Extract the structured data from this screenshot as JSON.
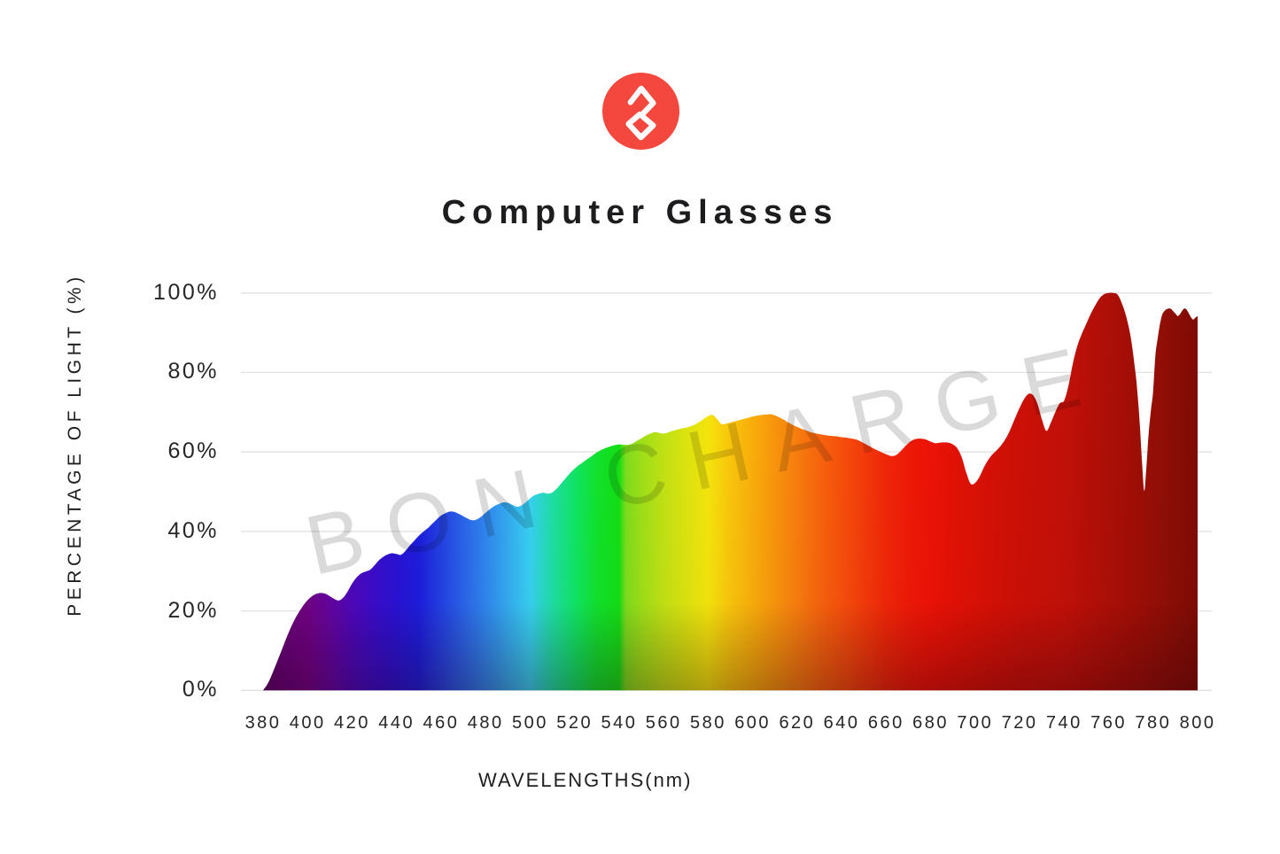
{
  "header": {
    "title": "Computer Glasses"
  },
  "brand": {
    "logo_color": "#f4473d",
    "logo_glyph_color": "#ffffff",
    "logo_icon": "bon-charge-8-mark"
  },
  "watermark": {
    "text": "BON CHARGE"
  },
  "chart_data": {
    "type": "area",
    "title": "Computer Glasses",
    "xlabel": "WAVELENGTHS(nm)",
    "ylabel": "PERCENTAGE OF LIGHT (%)",
    "xlim": [
      380,
      800
    ],
    "ylim": [
      0,
      100
    ],
    "grid": true,
    "gridline_color": "#e4e4e4",
    "legend_position": "none",
    "x_ticks": [
      {
        "value": 380,
        "label": "380"
      },
      {
        "value": 400,
        "label": "400"
      },
      {
        "value": 420,
        "label": "420"
      },
      {
        "value": 440,
        "label": "440"
      },
      {
        "value": 460,
        "label": "460"
      },
      {
        "value": 480,
        "label": "480"
      },
      {
        "value": 500,
        "label": "500"
      },
      {
        "value": 520,
        "label": "520"
      },
      {
        "value": 540,
        "label": "540"
      },
      {
        "value": 560,
        "label": "560"
      },
      {
        "value": 580,
        "label": "580"
      },
      {
        "value": 600,
        "label": "600"
      },
      {
        "value": 620,
        "label": "620"
      },
      {
        "value": 640,
        "label": "640"
      },
      {
        "value": 660,
        "label": "660"
      },
      {
        "value": 680,
        "label": "680"
      },
      {
        "value": 700,
        "label": "700"
      },
      {
        "value": 720,
        "label": "720"
      },
      {
        "value": 740,
        "label": "740"
      },
      {
        "value": 760,
        "label": "760"
      },
      {
        "value": 780,
        "label": "780"
      },
      {
        "value": 800,
        "label": "800"
      }
    ],
    "y_ticks": [
      {
        "value": 0,
        "label": "0%"
      },
      {
        "value": 20,
        "label": "20%"
      },
      {
        "value": 40,
        "label": "40%"
      },
      {
        "value": 60,
        "label": "60%"
      },
      {
        "value": 80,
        "label": "80%"
      },
      {
        "value": 100,
        "label": "100%"
      }
    ],
    "series": [
      {
        "name": "percentage of light transmitted",
        "points": [
          [
            380,
            0
          ],
          [
            382,
            1.6
          ],
          [
            384,
            4
          ],
          [
            386,
            6.8
          ],
          [
            388,
            9.6
          ],
          [
            390,
            12.5
          ],
          [
            392,
            15.2
          ],
          [
            394,
            17.6
          ],
          [
            396,
            19.6
          ],
          [
            398,
            21.3
          ],
          [
            400,
            22.7
          ],
          [
            402,
            23.7
          ],
          [
            404,
            24.3
          ],
          [
            406,
            24.5
          ],
          [
            408,
            24.3
          ],
          [
            410,
            23.7
          ],
          [
            412,
            23
          ],
          [
            414,
            22.6
          ],
          [
            416,
            23.3
          ],
          [
            418,
            24.9
          ],
          [
            420,
            26.9
          ],
          [
            422,
            28.4
          ],
          [
            424,
            29.4
          ],
          [
            426,
            29.9
          ],
          [
            428,
            30.3
          ],
          [
            430,
            31.4
          ],
          [
            432,
            32.7
          ],
          [
            434,
            33.6
          ],
          [
            436,
            34.2
          ],
          [
            438,
            34.5
          ],
          [
            440,
            34.3
          ],
          [
            442,
            34.1
          ],
          [
            444,
            35.1
          ],
          [
            446,
            36.5
          ],
          [
            448,
            37.7
          ],
          [
            450,
            38.9
          ],
          [
            452,
            39.9
          ],
          [
            454,
            40.8
          ],
          [
            456,
            41.9
          ],
          [
            458,
            43
          ],
          [
            460,
            44
          ],
          [
            462,
            44.6
          ],
          [
            464,
            45
          ],
          [
            466,
            44.9
          ],
          [
            468,
            44.4
          ],
          [
            470,
            43.8
          ],
          [
            472,
            43.2
          ],
          [
            474,
            42.8
          ],
          [
            476,
            43
          ],
          [
            478,
            43.7
          ],
          [
            480,
            44.7
          ],
          [
            482,
            45.6
          ],
          [
            484,
            46.4
          ],
          [
            486,
            46.9
          ],
          [
            488,
            47.3
          ],
          [
            490,
            47.2
          ],
          [
            492,
            46.7
          ],
          [
            494,
            46.2
          ],
          [
            496,
            46.5
          ],
          [
            498,
            47.3
          ],
          [
            500,
            48.3
          ],
          [
            502,
            49.1
          ],
          [
            504,
            49.5
          ],
          [
            506,
            49.7
          ],
          [
            508,
            49.5
          ],
          [
            510,
            49.8
          ],
          [
            512,
            50.8
          ],
          [
            514,
            52.1
          ],
          [
            516,
            53.4
          ],
          [
            518,
            54.7
          ],
          [
            520,
            55.8
          ],
          [
            522,
            56.7
          ],
          [
            524,
            57.5
          ],
          [
            526,
            58.3
          ],
          [
            528,
            59.1
          ],
          [
            530,
            59.9
          ],
          [
            532,
            60.5
          ],
          [
            534,
            61
          ],
          [
            536,
            61.4
          ],
          [
            538,
            61.7
          ],
          [
            540,
            61.9
          ],
          [
            542,
            61.8
          ],
          [
            544,
            61.8
          ],
          [
            546,
            62.1
          ],
          [
            548,
            62.8
          ],
          [
            550,
            63.4
          ],
          [
            552,
            64.1
          ],
          [
            554,
            64.6
          ],
          [
            556,
            65
          ],
          [
            558,
            64.8
          ],
          [
            560,
            64.6
          ],
          [
            562,
            64.9
          ],
          [
            564,
            65.3
          ],
          [
            566,
            65.6
          ],
          [
            568,
            65.9
          ],
          [
            570,
            66.1
          ],
          [
            572,
            66.4
          ],
          [
            574,
            66.9
          ],
          [
            576,
            67.5
          ],
          [
            578,
            68.3
          ],
          [
            580,
            69
          ],
          [
            582,
            69.3
          ],
          [
            584,
            68.3
          ],
          [
            586,
            67
          ],
          [
            588,
            67.1
          ],
          [
            590,
            67.4
          ],
          [
            592,
            67.7
          ],
          [
            594,
            68
          ],
          [
            596,
            68.3
          ],
          [
            598,
            68.6
          ],
          [
            600,
            68.9
          ],
          [
            602,
            69.1
          ],
          [
            604,
            69.3
          ],
          [
            606,
            69.4
          ],
          [
            608,
            69.5
          ],
          [
            610,
            69.2
          ],
          [
            612,
            68.7
          ],
          [
            614,
            68.1
          ],
          [
            616,
            67.4
          ],
          [
            618,
            66.8
          ],
          [
            620,
            66.3
          ],
          [
            622,
            65.8
          ],
          [
            624,
            65.4
          ],
          [
            626,
            65
          ],
          [
            628,
            64.7
          ],
          [
            630,
            64.5
          ],
          [
            632,
            64.3
          ],
          [
            634,
            64.1
          ],
          [
            636,
            64
          ],
          [
            638,
            63.9
          ],
          [
            640,
            63.7
          ],
          [
            642,
            63.6
          ],
          [
            644,
            63.4
          ],
          [
            646,
            63.2
          ],
          [
            648,
            62.8
          ],
          [
            650,
            62.2
          ],
          [
            652,
            61.6
          ],
          [
            654,
            61
          ],
          [
            656,
            60.4
          ],
          [
            658,
            59.9
          ],
          [
            660,
            59.4
          ],
          [
            662,
            59
          ],
          [
            664,
            59.1
          ],
          [
            666,
            59.9
          ],
          [
            668,
            61.1
          ],
          [
            670,
            62.2
          ],
          [
            672,
            63
          ],
          [
            674,
            63.3
          ],
          [
            676,
            63.3
          ],
          [
            678,
            63.1
          ],
          [
            680,
            62.6
          ],
          [
            682,
            62.2
          ],
          [
            684,
            62.3
          ],
          [
            686,
            62.4
          ],
          [
            688,
            62.3
          ],
          [
            690,
            61.9
          ],
          [
            692,
            60.9
          ],
          [
            694,
            58.6
          ],
          [
            696,
            54.8
          ],
          [
            698,
            52
          ],
          [
            700,
            52.2
          ],
          [
            702,
            53.8
          ],
          [
            704,
            56.2
          ],
          [
            706,
            58.1
          ],
          [
            708,
            59.5
          ],
          [
            710,
            60.6
          ],
          [
            712,
            61.9
          ],
          [
            714,
            63.6
          ],
          [
            716,
            65.9
          ],
          [
            718,
            68.6
          ],
          [
            720,
            71.1
          ],
          [
            722,
            73.3
          ],
          [
            724,
            74.6
          ],
          [
            726,
            74.3
          ],
          [
            728,
            72.1
          ],
          [
            730,
            68.2
          ],
          [
            732,
            65.3
          ],
          [
            734,
            67.3
          ],
          [
            736,
            70
          ],
          [
            738,
            72.2
          ],
          [
            740,
            72.9
          ],
          [
            742,
            76.8
          ],
          [
            744,
            82.5
          ],
          [
            746,
            86.8
          ],
          [
            748,
            89.8
          ],
          [
            750,
            92.3
          ],
          [
            752,
            94.8
          ],
          [
            754,
            96.9
          ],
          [
            756,
            98.7
          ],
          [
            758,
            99.7
          ],
          [
            760,
            100
          ],
          [
            762,
            100
          ],
          [
            764,
            99.6
          ],
          [
            766,
            97.3
          ],
          [
            768,
            93.8
          ],
          [
            770,
            88.6
          ],
          [
            772,
            80.2
          ],
          [
            773,
            74.5
          ],
          [
            774,
            67
          ],
          [
            775,
            57.5
          ],
          [
            776,
            50.2
          ],
          [
            777,
            56.5
          ],
          [
            778,
            64.8
          ],
          [
            779,
            70.5
          ],
          [
            780,
            75.3
          ],
          [
            781,
            84.2
          ],
          [
            782,
            88.4
          ],
          [
            783,
            92
          ],
          [
            784,
            94.4
          ],
          [
            785,
            95.4
          ],
          [
            786,
            95.9
          ],
          [
            787,
            96.1
          ],
          [
            788,
            96
          ],
          [
            789,
            95.4
          ],
          [
            790,
            94.8
          ],
          [
            791,
            94.2
          ],
          [
            792,
            94.6
          ],
          [
            793,
            95.5
          ],
          [
            794,
            96.1
          ],
          [
            795,
            95.8
          ],
          [
            796,
            94.9
          ],
          [
            797,
            93.9
          ],
          [
            798,
            93.3
          ],
          [
            799,
            93.8
          ],
          [
            800,
            94.2
          ]
        ]
      }
    ],
    "gradient_stops": [
      {
        "wavelength": 380,
        "color": "#5a0166"
      },
      {
        "wavelength": 390,
        "color": "#68017a"
      },
      {
        "wavelength": 400,
        "color": "#710184"
      },
      {
        "wavelength": 410,
        "color": "#6404a0"
      },
      {
        "wavelength": 420,
        "color": "#4d07bb"
      },
      {
        "wavelength": 430,
        "color": "#3a0ccb"
      },
      {
        "wavelength": 440,
        "color": "#2912d5"
      },
      {
        "wavelength": 450,
        "color": "#1c1edf"
      },
      {
        "wavelength": 460,
        "color": "#2341e5"
      },
      {
        "wavelength": 470,
        "color": "#2a64eb"
      },
      {
        "wavelength": 480,
        "color": "#2f87f0"
      },
      {
        "wavelength": 490,
        "color": "#34adf2"
      },
      {
        "wavelength": 500,
        "color": "#37d2f4"
      },
      {
        "wavelength": 510,
        "color": "#1fe0a6"
      },
      {
        "wavelength": 520,
        "color": "#10e767"
      },
      {
        "wavelength": 530,
        "color": "#11e42d"
      },
      {
        "wavelength": 540,
        "color": "#13e114"
      },
      {
        "wavelength": 543,
        "color": "#7edf1d"
      },
      {
        "wavelength": 550,
        "color": "#9fe118"
      },
      {
        "wavelength": 560,
        "color": "#c2e414"
      },
      {
        "wavelength": 570,
        "color": "#dde60f"
      },
      {
        "wavelength": 580,
        "color": "#f7e70c"
      },
      {
        "wavelength": 590,
        "color": "#fcc70c"
      },
      {
        "wavelength": 600,
        "color": "#fbaf0b"
      },
      {
        "wavelength": 610,
        "color": "#fa960c"
      },
      {
        "wavelength": 620,
        "color": "#fa7e0e"
      },
      {
        "wavelength": 630,
        "color": "#f9650d"
      },
      {
        "wavelength": 640,
        "color": "#f8500c"
      },
      {
        "wavelength": 650,
        "color": "#f53b0a"
      },
      {
        "wavelength": 660,
        "color": "#f22708"
      },
      {
        "wavelength": 670,
        "color": "#f01a07"
      },
      {
        "wavelength": 680,
        "color": "#ee1206"
      },
      {
        "wavelength": 690,
        "color": "#e51105"
      },
      {
        "wavelength": 700,
        "color": "#dc1105"
      },
      {
        "wavelength": 710,
        "color": "#d41006"
      },
      {
        "wavelength": 720,
        "color": "#cd1007"
      },
      {
        "wavelength": 730,
        "color": "#c81007"
      },
      {
        "wavelength": 740,
        "color": "#c31008"
      },
      {
        "wavelength": 750,
        "color": "#b80f07"
      },
      {
        "wavelength": 760,
        "color": "#ad0f07"
      },
      {
        "wavelength": 770,
        "color": "#a20e06"
      },
      {
        "wavelength": 780,
        "color": "#960e06"
      },
      {
        "wavelength": 790,
        "color": "#8a0d05"
      },
      {
        "wavelength": 800,
        "color": "#7f0c05"
      }
    ]
  }
}
